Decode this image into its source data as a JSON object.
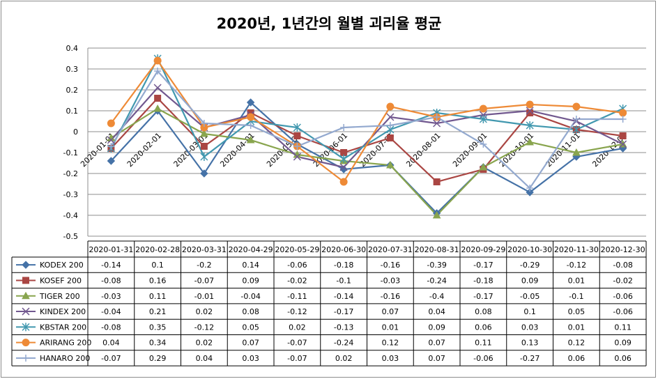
{
  "chart_data": {
    "type": "line",
    "title": "2020년, 1년간의 월별 괴리율 평균",
    "xlabel": "",
    "ylabel": "",
    "ylim": [
      -0.5,
      0.4
    ],
    "yticks": [
      "0.4",
      "0.3",
      "0.2",
      "0.1",
      "0",
      "-0.1",
      "-0.2",
      "-0.3",
      "-0.4",
      "-0.5"
    ],
    "x_axis_labels": [
      "2020-01-01",
      "2020-02-01",
      "2020-03-01",
      "2020-04-01",
      "2020-05-01",
      "2020-06-01",
      "2020-07-01",
      "2020-08-01",
      "2020-09-01",
      "2020-10-01",
      "2020-11-01",
      "2020-12-01"
    ],
    "categories": [
      "2020-01-31",
      "2020-02-28",
      "2020-03-31",
      "2020-04-29",
      "2020-05-29",
      "2020-06-30",
      "2020-07-31",
      "2020-08-31",
      "2020-09-29",
      "2020-10-30",
      "2020-11-30",
      "2020-12-30"
    ],
    "grid": true,
    "legend": "data-table-left",
    "series": [
      {
        "name": "KODEX 200",
        "color": "#4572a7",
        "marker": "diamond",
        "values": [
          -0.14,
          0.1,
          -0.2,
          0.14,
          -0.06,
          -0.18,
          -0.16,
          -0.39,
          -0.17,
          -0.29,
          -0.12,
          -0.08
        ]
      },
      {
        "name": "KOSEF 200",
        "color": "#aa4643",
        "marker": "square",
        "values": [
          -0.08,
          0.16,
          -0.07,
          0.09,
          -0.02,
          -0.1,
          -0.03,
          -0.24,
          -0.18,
          0.09,
          0.01,
          -0.02
        ]
      },
      {
        "name": "TIGER 200",
        "color": "#89a54e",
        "marker": "triangle",
        "values": [
          -0.03,
          0.11,
          -0.01,
          -0.04,
          -0.11,
          -0.14,
          -0.16,
          -0.4,
          -0.17,
          -0.05,
          -0.1,
          -0.06
        ]
      },
      {
        "name": "KINDEX 200",
        "color": "#71588f",
        "marker": "x",
        "values": [
          -0.04,
          0.21,
          0.02,
          0.08,
          -0.12,
          -0.17,
          0.07,
          0.04,
          0.08,
          0.1,
          0.05,
          -0.06
        ]
      },
      {
        "name": "KBSTAR 200",
        "color": "#4198af",
        "marker": "star",
        "values": [
          -0.08,
          0.35,
          -0.12,
          0.05,
          0.02,
          -0.13,
          0.01,
          0.09,
          0.06,
          0.03,
          0.01,
          0.11
        ]
      },
      {
        "name": "ARIRANG 200",
        "color": "#ee8a36",
        "marker": "circle",
        "values": [
          0.04,
          0.34,
          0.02,
          0.07,
          -0.07,
          -0.24,
          0.12,
          0.07,
          0.11,
          0.13,
          0.12,
          0.09
        ]
      },
      {
        "name": "HANARO 200",
        "color": "#93a9cf",
        "marker": "plus",
        "values": [
          -0.07,
          0.29,
          0.04,
          0.03,
          -0.07,
          0.02,
          0.03,
          0.07,
          -0.06,
          -0.27,
          0.06,
          0.06
        ]
      }
    ]
  }
}
